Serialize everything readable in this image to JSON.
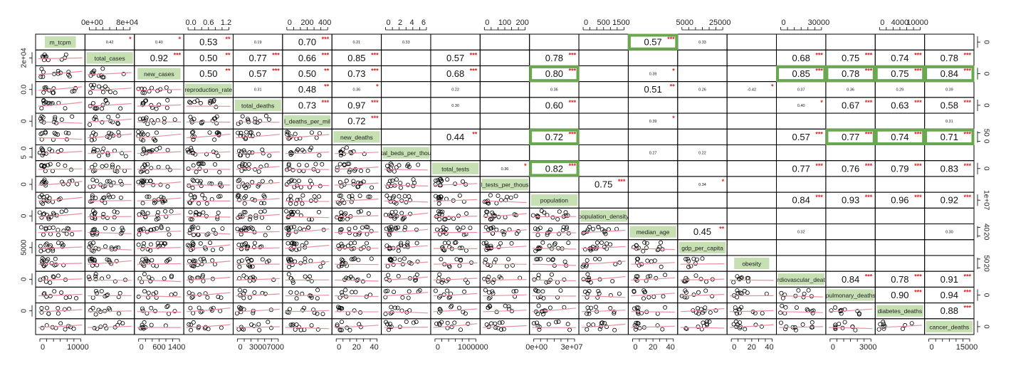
{
  "chart_data": {
    "type": "scatter-matrix",
    "variables": [
      "m_tcpm",
      "total_cases",
      "new_cases",
      "reproduction_rate",
      "total_deaths",
      "total_deaths_per_million",
      "new_deaths",
      "hospital_beds_per_thousand",
      "total_tests",
      "total_tests_per_thousand",
      "population",
      "population_density",
      "median_age",
      "gdp_per_capita",
      "obesity",
      "cardiovascular_deaths",
      "pulmonary_deaths",
      "diabetes_deaths",
      "cancer_deaths"
    ],
    "diag_labels": [
      "m_tcpm",
      "total_cases",
      "new_cases",
      "reproduction_rate",
      "total_deaths",
      "l_deaths_per_mil",
      "new_deaths",
      "tal_beds_per_thou",
      "total_tests",
      "l_tests_per_thous",
      "population",
      "population_density",
      "median_age",
      "gdp_per_capita",
      "obesity",
      "rdiovascular_deat",
      "pulmonary_deaths",
      "diabetes_deaths",
      "cancer_deaths"
    ],
    "top_axis": [
      {
        "col": 1,
        "ticks": [
          "0e+00",
          "8e+04"
        ]
      },
      {
        "col": 3,
        "ticks": [
          "0.0",
          "0.6",
          "1.2"
        ]
      },
      {
        "col": 5,
        "ticks": [
          "0",
          "200",
          "400"
        ]
      },
      {
        "col": 7,
        "ticks": [
          "0",
          "2",
          "4",
          "6"
        ]
      },
      {
        "col": 9,
        "ticks": [
          "0",
          "100",
          "200"
        ]
      },
      {
        "col": 11,
        "ticks": [
          "0",
          "500",
          "1500"
        ]
      },
      {
        "col": 13,
        "ticks": [
          "5000",
          "25000"
        ]
      },
      {
        "col": 15,
        "ticks": [
          "0",
          "30000"
        ]
      },
      {
        "col": 17,
        "ticks": [
          "0",
          "4000",
          "10000"
        ]
      }
    ],
    "bottom_axis": [
      {
        "col": 0,
        "ticks": [
          "0",
          "10000"
        ]
      },
      {
        "col": 2,
        "ticks": [
          "0",
          "600",
          "1400"
        ]
      },
      {
        "col": 4,
        "ticks": [
          "0",
          "3000",
          "7000"
        ]
      },
      {
        "col": 6,
        "ticks": [
          "0",
          "20",
          "40"
        ]
      },
      {
        "col": 8,
        "ticks": [
          "0",
          "1000000"
        ]
      },
      {
        "col": 10,
        "ticks": [
          "0e+00",
          "3e+07"
        ]
      },
      {
        "col": 12,
        "ticks": [
          "0",
          "20",
          "40"
        ]
      },
      {
        "col": 14,
        "ticks": [
          "0",
          "20",
          "40"
        ]
      },
      {
        "col": 16,
        "ticks": [
          "0",
          "3000"
        ]
      },
      {
        "col": 18,
        "ticks": [
          "0",
          "15000"
        ]
      }
    ],
    "left_axis": [
      {
        "row": 1,
        "ticks": [
          "2e+04"
        ]
      },
      {
        "row": 3,
        "ticks": [
          "0.0"
        ]
      },
      {
        "row": 5,
        "ticks": [
          "0"
        ]
      },
      {
        "row": 7,
        "ticks": [
          "0",
          "5"
        ]
      },
      {
        "row": 9,
        "ticks": [
          "0"
        ]
      },
      {
        "row": 11,
        "ticks": [
          "0"
        ]
      },
      {
        "row": 13,
        "ticks": [
          "5000"
        ]
      },
      {
        "row": 15,
        "ticks": [
          "0"
        ]
      },
      {
        "row": 17,
        "ticks": [
          "0"
        ]
      }
    ],
    "right_axis": [
      {
        "row": 0,
        "ticks": [
          "0"
        ]
      },
      {
        "row": 2,
        "ticks": [
          "0"
        ]
      },
      {
        "row": 4,
        "ticks": [
          "0"
        ]
      },
      {
        "row": 6,
        "ticks": [
          "50",
          "0"
        ]
      },
      {
        "row": 8,
        "ticks": [
          "0"
        ]
      },
      {
        "row": 10,
        "ticks": [
          "1e+07"
        ]
      },
      {
        "row": 12,
        "ticks": [
          "40",
          "20"
        ]
      },
      {
        "row": 14,
        "ticks": [
          "50",
          "20"
        ]
      },
      {
        "row": 16,
        "ticks": [
          "0"
        ]
      },
      {
        "row": 18,
        "ticks": [
          "0"
        ]
      }
    ],
    "correlations": [
      {
        "r": 0,
        "c": 1,
        "v": "0.42",
        "s": "*",
        "big": false
      },
      {
        "r": 0,
        "c": 2,
        "v": "0.40",
        "s": "*",
        "big": false
      },
      {
        "r": 0,
        "c": 3,
        "v": "0.53",
        "s": "**",
        "big": true
      },
      {
        "r": 0,
        "c": 4,
        "v": "0.19",
        "s": "",
        "big": false
      },
      {
        "r": 0,
        "c": 5,
        "v": "0.70",
        "s": "***",
        "big": true
      },
      {
        "r": 0,
        "c": 6,
        "v": "0.21",
        "s": "",
        "big": false
      },
      {
        "r": 0,
        "c": 7,
        "v": "0.33",
        "s": "",
        "big": false
      },
      {
        "r": 0,
        "c": 12,
        "v": "0.57",
        "s": "***",
        "big": true
      },
      {
        "r": 0,
        "c": 13,
        "v": "0.33",
        "s": "",
        "big": false
      },
      {
        "r": 1,
        "c": 2,
        "v": "0.92",
        "s": "***",
        "big": true
      },
      {
        "r": 1,
        "c": 3,
        "v": "0.50",
        "s": "**",
        "big": true
      },
      {
        "r": 1,
        "c": 4,
        "v": "0.77",
        "s": "***",
        "big": true
      },
      {
        "r": 1,
        "c": 5,
        "v": "0.66",
        "s": "***",
        "big": true
      },
      {
        "r": 1,
        "c": 6,
        "v": "0.85",
        "s": "***",
        "big": true
      },
      {
        "r": 1,
        "c": 8,
        "v": "0.57",
        "s": "***",
        "big": true
      },
      {
        "r": 1,
        "c": 10,
        "v": "0.78",
        "s": "***",
        "big": true
      },
      {
        "r": 1,
        "c": 15,
        "v": "0.68",
        "s": "***",
        "big": true
      },
      {
        "r": 1,
        "c": 16,
        "v": "0.75",
        "s": "***",
        "big": true
      },
      {
        "r": 1,
        "c": 17,
        "v": "0.74",
        "s": "***",
        "big": true
      },
      {
        "r": 1,
        "c": 18,
        "v": "0.78",
        "s": "***",
        "big": true
      },
      {
        "r": 2,
        "c": 3,
        "v": "0.50",
        "s": "**",
        "big": true
      },
      {
        "r": 2,
        "c": 4,
        "v": "0.57",
        "s": "***",
        "big": true
      },
      {
        "r": 2,
        "c": 5,
        "v": "0.50",
        "s": "**",
        "big": true
      },
      {
        "r": 2,
        "c": 6,
        "v": "0.73",
        "s": "***",
        "big": true
      },
      {
        "r": 2,
        "c": 8,
        "v": "0.68",
        "s": "***",
        "big": true
      },
      {
        "r": 2,
        "c": 10,
        "v": "0.80",
        "s": "***",
        "big": true
      },
      {
        "r": 2,
        "c": 12,
        "v": "0.39",
        "s": "*",
        "big": false
      },
      {
        "r": 2,
        "c": 15,
        "v": "0.85",
        "s": "***",
        "big": true
      },
      {
        "r": 2,
        "c": 16,
        "v": "0.78",
        "s": "***",
        "big": true
      },
      {
        "r": 2,
        "c": 17,
        "v": "0.75",
        "s": "***",
        "big": true
      },
      {
        "r": 2,
        "c": 18,
        "v": "0.84",
        "s": "***",
        "big": true
      },
      {
        "r": 3,
        "c": 4,
        "v": "0.31",
        "s": "",
        "big": false
      },
      {
        "r": 3,
        "c": 5,
        "v": "0.48",
        "s": "**",
        "big": true
      },
      {
        "r": 3,
        "c": 6,
        "v": "0.36",
        "s": "*",
        "big": false
      },
      {
        "r": 3,
        "c": 8,
        "v": "0.22",
        "s": "",
        "big": false
      },
      {
        "r": 3,
        "c": 10,
        "v": "0.36",
        "s": "",
        "big": false
      },
      {
        "r": 3,
        "c": 12,
        "v": "0.51",
        "s": "**",
        "big": true
      },
      {
        "r": 3,
        "c": 13,
        "v": "0.26",
        "s": "",
        "big": false
      },
      {
        "r": 3,
        "c": 14,
        "v": "-0.42",
        "s": "*",
        "big": false
      },
      {
        "r": 3,
        "c": 15,
        "v": "0.37",
        "s": "",
        "big": false
      },
      {
        "r": 3,
        "c": 16,
        "v": "0.36",
        "s": "",
        "big": false
      },
      {
        "r": 3,
        "c": 17,
        "v": "0.29",
        "s": "",
        "big": false
      },
      {
        "r": 3,
        "c": 18,
        "v": "0.39",
        "s": "",
        "big": false
      },
      {
        "r": 4,
        "c": 5,
        "v": "0.73",
        "s": "***",
        "big": true
      },
      {
        "r": 4,
        "c": 6,
        "v": "0.97",
        "s": "***",
        "big": true
      },
      {
        "r": 4,
        "c": 8,
        "v": "0.30",
        "s": "",
        "big": false
      },
      {
        "r": 4,
        "c": 10,
        "v": "0.60",
        "s": "***",
        "big": true
      },
      {
        "r": 4,
        "c": 15,
        "v": "0.40",
        "s": "*",
        "big": false
      },
      {
        "r": 4,
        "c": 16,
        "v": "0.67",
        "s": "***",
        "big": true
      },
      {
        "r": 4,
        "c": 17,
        "v": "0.63",
        "s": "***",
        "big": true
      },
      {
        "r": 4,
        "c": 18,
        "v": "0.58",
        "s": "***",
        "big": true
      },
      {
        "r": 5,
        "c": 6,
        "v": "0.72",
        "s": "***",
        "big": true
      },
      {
        "r": 5,
        "c": 12,
        "v": "0.39",
        "s": "*",
        "big": false
      },
      {
        "r": 5,
        "c": 18,
        "v": "0.31",
        "s": "",
        "big": false
      },
      {
        "r": 6,
        "c": 8,
        "v": "0.44",
        "s": "**",
        "big": true
      },
      {
        "r": 6,
        "c": 10,
        "v": "0.72",
        "s": "***",
        "big": true
      },
      {
        "r": 6,
        "c": 15,
        "v": "0.57",
        "s": "***",
        "big": true
      },
      {
        "r": 6,
        "c": 16,
        "v": "0.77",
        "s": "***",
        "big": true
      },
      {
        "r": 6,
        "c": 17,
        "v": "0.74",
        "s": "***",
        "big": true
      },
      {
        "r": 6,
        "c": 18,
        "v": "0.71",
        "s": "***",
        "big": true
      },
      {
        "r": 7,
        "c": 12,
        "v": "0.27",
        "s": "",
        "big": false
      },
      {
        "r": 7,
        "c": 13,
        "v": "0.22",
        "s": "",
        "big": false
      },
      {
        "r": 8,
        "c": 9,
        "v": "0.36",
        "s": "*",
        "big": false
      },
      {
        "r": 8,
        "c": 10,
        "v": "0.82",
        "s": "***",
        "big": true
      },
      {
        "r": 8,
        "c": 15,
        "v": "0.77",
        "s": "***",
        "big": true
      },
      {
        "r": 8,
        "c": 16,
        "v": "0.76",
        "s": "***",
        "big": true
      },
      {
        "r": 8,
        "c": 17,
        "v": "0.79",
        "s": "***",
        "big": true
      },
      {
        "r": 8,
        "c": 18,
        "v": "0.83",
        "s": "***",
        "big": true
      },
      {
        "r": 9,
        "c": 11,
        "v": "0.75",
        "s": "***",
        "big": true
      },
      {
        "r": 9,
        "c": 13,
        "v": "0.34",
        "s": "*",
        "big": false
      },
      {
        "r": 10,
        "c": 15,
        "v": "0.84",
        "s": "***",
        "big": true
      },
      {
        "r": 10,
        "c": 16,
        "v": "0.93",
        "s": "***",
        "big": true
      },
      {
        "r": 10,
        "c": 17,
        "v": "0.96",
        "s": "***",
        "big": true
      },
      {
        "r": 10,
        "c": 18,
        "v": "0.92",
        "s": "***",
        "big": true
      },
      {
        "r": 12,
        "c": 13,
        "v": "0.45",
        "s": "**",
        "big": true
      },
      {
        "r": 12,
        "c": 15,
        "v": "0.32",
        "s": "",
        "big": false
      },
      {
        "r": 12,
        "c": 18,
        "v": "0.30",
        "s": "",
        "big": false
      },
      {
        "r": 15,
        "c": 16,
        "v": "0.84",
        "s": "***",
        "big": true
      },
      {
        "r": 15,
        "c": 17,
        "v": "0.78",
        "s": "***",
        "big": true
      },
      {
        "r": 15,
        "c": 18,
        "v": "0.91",
        "s": "***",
        "big": true
      },
      {
        "r": 16,
        "c": 17,
        "v": "0.90",
        "s": "***",
        "big": true
      },
      {
        "r": 16,
        "c": 18,
        "v": "0.94",
        "s": "***",
        "big": true
      },
      {
        "r": 17,
        "c": 18,
        "v": "0.88",
        "s": "***",
        "big": true
      }
    ],
    "highlighted_cells": [
      {
        "r": 0,
        "c": 12
      },
      {
        "r": 2,
        "c": 10
      },
      {
        "r": 2,
        "c": 15
      },
      {
        "r": 2,
        "c": 16
      },
      {
        "r": 2,
        "c": 17
      },
      {
        "r": 2,
        "c": 18
      },
      {
        "r": 6,
        "c": 10
      },
      {
        "r": 6,
        "c": 16
      },
      {
        "r": 6,
        "c": 17
      },
      {
        "r": 6,
        "c": 18
      },
      {
        "r": 8,
        "c": 10
      }
    ],
    "colors": {
      "diag_fill": "#c6e0b4",
      "highlight": "#6aa84f",
      "smooth_line": "#e8909c",
      "star": "#e02020",
      "grid": "#000000"
    }
  }
}
